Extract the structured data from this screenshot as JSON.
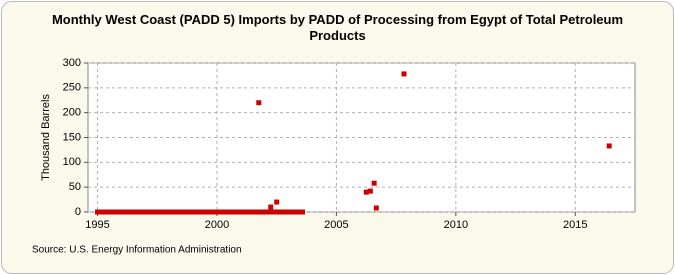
{
  "chart_data": {
    "type": "scatter",
    "title": "Monthly West Coast (PADD 5) Imports by PADD of Processing from Egypt of Total Petroleum Products",
    "y_label": "Thousand Barrels",
    "source": "Source: U.S. Energy Information Administration",
    "color": "#cc0000",
    "x": [
      1995.0,
      1995.08,
      1995.17,
      1995.25,
      1995.33,
      1995.42,
      1995.5,
      1995.58,
      1995.67,
      1995.75,
      1995.83,
      1995.92,
      1996.0,
      1996.08,
      1996.17,
      1996.25,
      1996.33,
      1996.42,
      1996.5,
      1996.58,
      1996.67,
      1996.75,
      1996.83,
      1996.92,
      1997.0,
      1997.08,
      1997.17,
      1997.25,
      1997.33,
      1997.42,
      1997.5,
      1997.58,
      1997.67,
      1997.75,
      1997.83,
      1997.92,
      1998.0,
      1998.08,
      1998.17,
      1998.25,
      1998.33,
      1998.42,
      1998.5,
      1998.58,
      1998.67,
      1998.75,
      1998.83,
      1998.92,
      1999.0,
      1999.08,
      1999.17,
      1999.25,
      1999.33,
      1999.42,
      1999.5,
      1999.58,
      1999.67,
      1999.75,
      1999.83,
      1999.92,
      2000.0,
      2000.08,
      2000.17,
      2000.25,
      2000.33,
      2000.42,
      2000.5,
      2000.58,
      2000.67,
      2000.75,
      2000.83,
      2000.92,
      2001.0,
      2001.08,
      2001.17,
      2001.25,
      2001.33,
      2001.42,
      2001.5,
      2001.58,
      2001.67,
      2001.75,
      2001.83,
      2001.92,
      2002.0,
      2002.08,
      2002.17,
      2002.25,
      2002.33,
      2002.42,
      2002.5,
      2002.58,
      2002.67,
      2002.75,
      2002.83,
      2002.92,
      2003.0,
      2003.08,
      2003.17,
      2003.25,
      2003.33,
      2003.42,
      2003.5,
      2003.58,
      2006.25,
      2006.42,
      2006.58,
      2006.67,
      2007.83,
      2016.42
    ],
    "values": [
      0,
      0,
      0,
      0,
      0,
      0,
      0,
      0,
      0,
      0,
      0,
      0,
      0,
      0,
      0,
      0,
      0,
      0,
      0,
      0,
      0,
      0,
      0,
      0,
      0,
      0,
      0,
      0,
      0,
      0,
      0,
      0,
      0,
      0,
      0,
      0,
      0,
      0,
      0,
      0,
      0,
      0,
      0,
      0,
      0,
      0,
      0,
      0,
      0,
      0,
      0,
      0,
      0,
      0,
      0,
      0,
      0,
      0,
      0,
      0,
      0,
      0,
      0,
      0,
      0,
      0,
      0,
      0,
      0,
      0,
      0,
      0,
      0,
      0,
      0,
      0,
      0,
      0,
      0,
      0,
      0,
      220,
      0,
      0,
      0,
      0,
      0,
      10,
      0,
      0,
      20,
      0,
      0,
      0,
      0,
      0,
      0,
      0,
      0,
      0,
      0,
      0,
      0,
      0,
      40,
      42,
      58,
      8,
      278,
      133
    ],
    "xlim": [
      1994.6,
      2017.5
    ],
    "ylim": [
      0,
      300
    ],
    "xticks": [
      1995,
      2000,
      2005,
      2010,
      2015
    ],
    "yticks": [
      0,
      50,
      100,
      150,
      200,
      250,
      300
    ],
    "grid": true
  }
}
